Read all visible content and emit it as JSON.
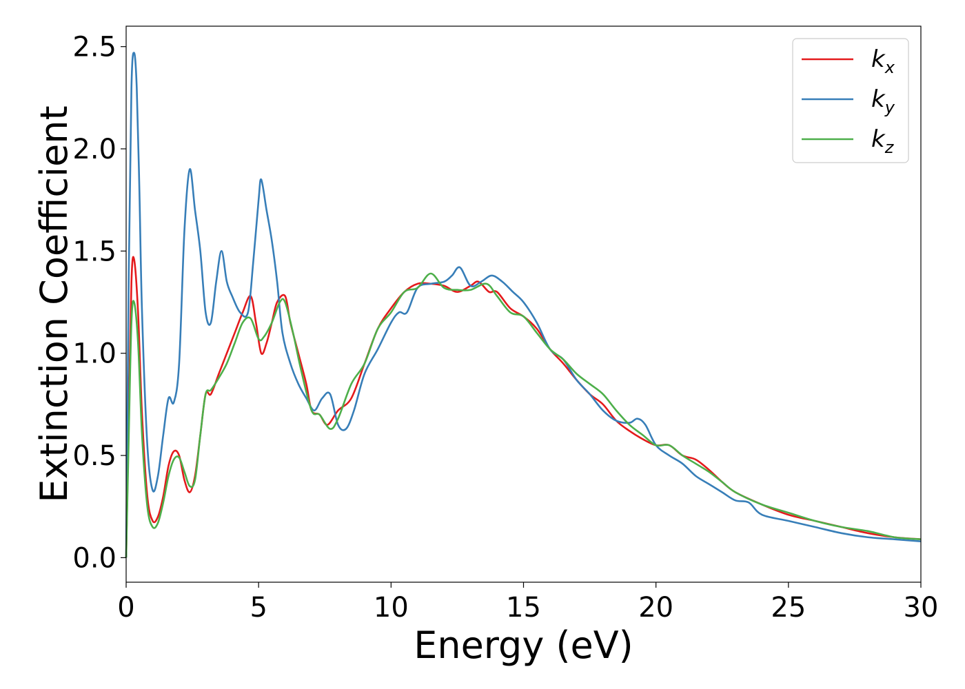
{
  "chart_data": {
    "type": "line",
    "title": "",
    "xlabel": "Energy (eV)",
    "ylabel": "Extinction Coefficient",
    "xlim": [
      0,
      30
    ],
    "ylim": [
      -0.12,
      2.6
    ],
    "xticks": [
      0,
      5,
      10,
      15,
      20,
      25,
      30
    ],
    "xtick_labels": [
      "0",
      "5",
      "10",
      "15",
      "20",
      "25",
      "30"
    ],
    "yticks": [
      0.0,
      0.5,
      1.0,
      1.5,
      2.0,
      2.5
    ],
    "ytick_labels": [
      "0.0",
      "0.5",
      "1.0",
      "1.5",
      "2.0",
      "2.5"
    ],
    "grid": false,
    "legend_position": "top-right",
    "series": [
      {
        "name": "k_x",
        "legend_base": "k",
        "legend_sub": "x",
        "color": "#e41a1c",
        "x": [
          0,
          0.1,
          0.2,
          0.3,
          0.45,
          0.6,
          0.8,
          1.0,
          1.2,
          1.4,
          1.6,
          1.8,
          2.0,
          2.2,
          2.4,
          2.6,
          2.8,
          3.0,
          3.2,
          3.5,
          3.8,
          4.1,
          4.4,
          4.7,
          4.9,
          5.1,
          5.3,
          5.5,
          5.7,
          6.0,
          6.2,
          6.5,
          6.8,
          7.0,
          7.3,
          7.6,
          8.0,
          8.5,
          9.0,
          9.5,
          10.0,
          10.5,
          11.0,
          11.5,
          12.0,
          12.5,
          13.0,
          13.3,
          13.7,
          14.0,
          14.5,
          15.0,
          15.5,
          16.0,
          16.5,
          17.0,
          17.5,
          18.0,
          18.5,
          19.0,
          19.5,
          20.0,
          20.5,
          21.0,
          21.5,
          22.0,
          22.5,
          23.0,
          24.0,
          25.0,
          26.0,
          27.0,
          28.0,
          29.0,
          30.0
        ],
        "values": [
          0.0,
          0.7,
          1.35,
          1.46,
          1.2,
          0.7,
          0.3,
          0.18,
          0.2,
          0.3,
          0.45,
          0.52,
          0.5,
          0.38,
          0.32,
          0.4,
          0.6,
          0.8,
          0.8,
          0.9,
          1.0,
          1.1,
          1.2,
          1.28,
          1.15,
          1.0,
          1.05,
          1.15,
          1.25,
          1.28,
          1.15,
          1.0,
          0.85,
          0.72,
          0.7,
          0.65,
          0.72,
          0.78,
          0.95,
          1.12,
          1.22,
          1.3,
          1.34,
          1.34,
          1.33,
          1.3,
          1.33,
          1.35,
          1.3,
          1.3,
          1.22,
          1.18,
          1.12,
          1.02,
          0.95,
          0.87,
          0.8,
          0.75,
          0.67,
          0.62,
          0.58,
          0.55,
          0.55,
          0.5,
          0.48,
          0.43,
          0.37,
          0.32,
          0.26,
          0.21,
          0.18,
          0.15,
          0.12,
          0.1,
          0.09
        ]
      },
      {
        "name": "k_y",
        "legend_base": "k",
        "legend_sub": "y",
        "color": "#377eb8",
        "x": [
          0,
          0.1,
          0.2,
          0.3,
          0.4,
          0.5,
          0.6,
          0.8,
          1.0,
          1.2,
          1.4,
          1.6,
          1.8,
          2.0,
          2.2,
          2.4,
          2.6,
          2.8,
          3.0,
          3.2,
          3.4,
          3.6,
          3.8,
          4.0,
          4.3,
          4.6,
          4.8,
          5.0,
          5.1,
          5.3,
          5.5,
          5.7,
          5.9,
          6.2,
          6.5,
          6.8,
          7.1,
          7.4,
          7.7,
          8.0,
          8.3,
          8.6,
          9.0,
          9.5,
          10.0,
          10.3,
          10.6,
          11.0,
          11.5,
          12.0,
          12.3,
          12.6,
          13.0,
          13.4,
          13.8,
          14.2,
          14.6,
          15.0,
          15.5,
          16.0,
          16.5,
          17.0,
          17.5,
          18.0,
          18.5,
          19.0,
          19.3,
          19.6,
          20.0,
          20.5,
          21.0,
          21.5,
          22.0,
          22.5,
          23.0,
          23.5,
          24.0,
          25.0,
          26.0,
          27.0,
          28.0,
          29.0,
          30.0
        ],
        "values": [
          0.0,
          1.4,
          2.3,
          2.47,
          2.3,
          1.8,
          1.2,
          0.55,
          0.33,
          0.4,
          0.6,
          0.78,
          0.76,
          0.95,
          1.6,
          1.9,
          1.7,
          1.5,
          1.2,
          1.15,
          1.35,
          1.5,
          1.35,
          1.28,
          1.2,
          1.2,
          1.45,
          1.75,
          1.85,
          1.7,
          1.55,
          1.35,
          1.1,
          0.95,
          0.85,
          0.78,
          0.72,
          0.78,
          0.8,
          0.65,
          0.63,
          0.72,
          0.9,
          1.02,
          1.15,
          1.2,
          1.2,
          1.32,
          1.34,
          1.35,
          1.38,
          1.42,
          1.33,
          1.35,
          1.38,
          1.35,
          1.3,
          1.25,
          1.15,
          1.02,
          0.97,
          0.87,
          0.8,
          0.72,
          0.67,
          0.66,
          0.68,
          0.65,
          0.55,
          0.5,
          0.46,
          0.4,
          0.36,
          0.32,
          0.28,
          0.27,
          0.21,
          0.18,
          0.15,
          0.12,
          0.1,
          0.09,
          0.08
        ]
      },
      {
        "name": "k_z",
        "legend_base": "k",
        "legend_sub": "z",
        "color": "#4daf4a",
        "x": [
          0,
          0.1,
          0.2,
          0.3,
          0.45,
          0.6,
          0.8,
          1.0,
          1.2,
          1.4,
          1.6,
          1.8,
          2.0,
          2.2,
          2.4,
          2.6,
          2.8,
          3.0,
          3.2,
          3.5,
          3.8,
          4.1,
          4.4,
          4.7,
          5.0,
          5.2,
          5.5,
          5.8,
          6.0,
          6.3,
          6.6,
          7.0,
          7.3,
          7.7,
          8.0,
          8.5,
          9.0,
          9.5,
          10.0,
          10.5,
          11.0,
          11.5,
          12.0,
          12.5,
          13.0,
          13.6,
          14.0,
          14.5,
          15.0,
          15.5,
          16.0,
          16.5,
          17.0,
          17.5,
          18.0,
          18.5,
          19.0,
          19.5,
          20.0,
          20.5,
          21.0,
          21.5,
          22.0,
          22.5,
          23.0,
          24.0,
          25.0,
          26.0,
          27.0,
          28.0,
          29.0,
          30.0
        ],
        "values": [
          0.0,
          0.6,
          1.15,
          1.25,
          1.05,
          0.6,
          0.25,
          0.15,
          0.17,
          0.27,
          0.4,
          0.48,
          0.49,
          0.42,
          0.35,
          0.38,
          0.6,
          0.8,
          0.82,
          0.88,
          0.95,
          1.05,
          1.15,
          1.17,
          1.07,
          1.08,
          1.15,
          1.25,
          1.25,
          1.1,
          0.92,
          0.72,
          0.7,
          0.63,
          0.68,
          0.85,
          0.95,
          1.12,
          1.2,
          1.3,
          1.32,
          1.39,
          1.32,
          1.31,
          1.31,
          1.34,
          1.28,
          1.2,
          1.18,
          1.1,
          1.02,
          0.97,
          0.9,
          0.85,
          0.8,
          0.72,
          0.65,
          0.6,
          0.55,
          0.55,
          0.5,
          0.46,
          0.42,
          0.37,
          0.32,
          0.26,
          0.22,
          0.18,
          0.15,
          0.13,
          0.1,
          0.09
        ]
      }
    ]
  }
}
